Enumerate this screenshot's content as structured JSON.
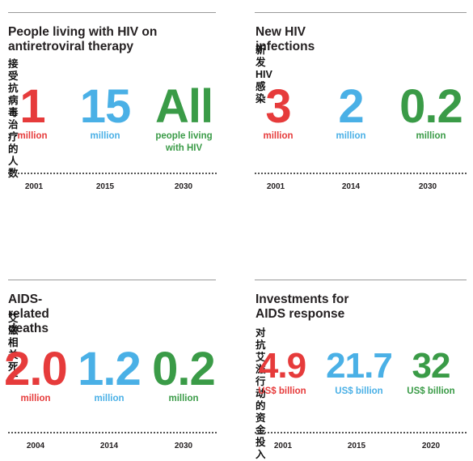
{
  "colors": {
    "red": "#e63b3b",
    "blue": "#4ab0e6",
    "green": "#3a9b47"
  },
  "panels": [
    {
      "title": "People living with HIV on antiretroviral therapy",
      "subtitle": "接受抗病毒治疗的人数",
      "stats": [
        {
          "value": "1",
          "unit": "million",
          "year": "2001",
          "color": "red"
        },
        {
          "value": "15",
          "unit": "million",
          "year": "2015",
          "color": "blue"
        },
        {
          "value": "All",
          "unit": "people living with HIV",
          "year": "2030",
          "color": "green"
        }
      ]
    },
    {
      "title": "New HIV infections",
      "subtitle": "新发HIV感染",
      "stats": [
        {
          "value": "3",
          "unit": "million",
          "year": "2001",
          "color": "red"
        },
        {
          "value": "2",
          "unit": "million",
          "year": "2014",
          "color": "blue"
        },
        {
          "value": "0.2",
          "unit": "million",
          "year": "2030",
          "color": "green"
        }
      ]
    },
    {
      "title": "AIDS-related deaths",
      "subtitle": "艾滋相关死亡",
      "stats": [
        {
          "value": "2.0",
          "unit": "million",
          "year": "2004",
          "color": "red"
        },
        {
          "value": "1.2",
          "unit": "million",
          "year": "2014",
          "color": "blue"
        },
        {
          "value": "0.2",
          "unit": "million",
          "year": "2030",
          "color": "green"
        }
      ]
    },
    {
      "title": "Investments for AIDS response",
      "subtitle": "对抗艾滋行动的资金投入",
      "stats": [
        {
          "value": "4.9",
          "unit": "US$ billion",
          "year": "2001",
          "color": "red"
        },
        {
          "value": "21.7",
          "unit": "US$ billion",
          "year": "2015",
          "color": "blue"
        },
        {
          "value": "32",
          "unit": "US$ billion",
          "year": "2020",
          "color": "green"
        }
      ]
    }
  ]
}
